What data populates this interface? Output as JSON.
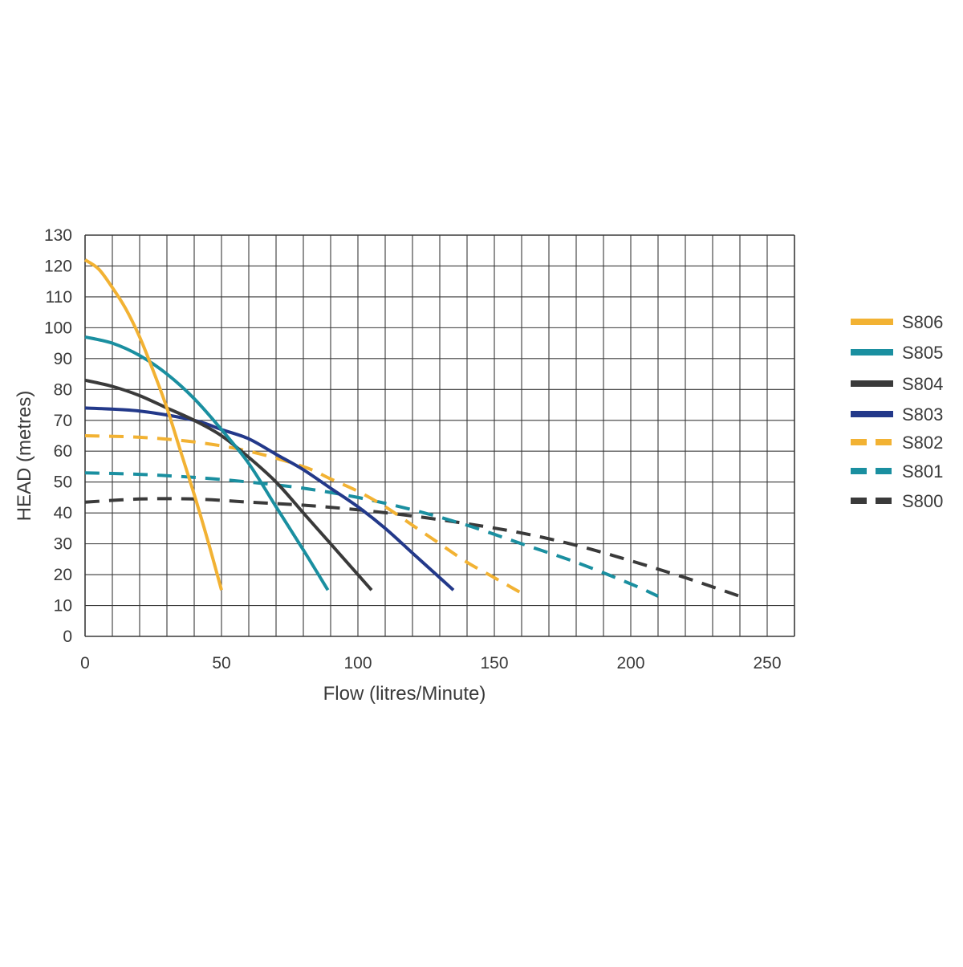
{
  "chart_data": {
    "type": "line",
    "title": "",
    "xlabel": "Flow (litres/Minute)",
    "ylabel": "HEAD (metres)",
    "xlim": [
      0,
      260
    ],
    "ylim": [
      0,
      130
    ],
    "x_ticks": [
      "0",
      "50",
      "100",
      "150",
      "200",
      "250"
    ],
    "y_ticks": [
      "0",
      "10",
      "20",
      "30",
      "40",
      "50",
      "60",
      "70",
      "80",
      "90",
      "100",
      "110",
      "120",
      "130"
    ],
    "grid": true,
    "legend_position": "right",
    "series": [
      {
        "name": "S806",
        "color": "#f2b233",
        "style": "solid",
        "x": [
          0,
          5,
          10,
          15,
          20,
          25,
          30,
          35,
          40,
          45,
          50
        ],
        "y": [
          122,
          119,
          113,
          106,
          97,
          86,
          74,
          60,
          46,
          31,
          15
        ]
      },
      {
        "name": "S805",
        "color": "#1a8fa0",
        "style": "solid",
        "x": [
          0,
          10,
          20,
          30,
          40,
          50,
          60,
          70,
          80,
          89
        ],
        "y": [
          97,
          95,
          91,
          85,
          77,
          67,
          56,
          42,
          28,
          15
        ]
      },
      {
        "name": "S804",
        "color": "#3a3a3a",
        "style": "solid",
        "x": [
          0,
          10,
          20,
          30,
          40,
          50,
          60,
          70,
          80,
          90,
          100,
          105
        ],
        "y": [
          83,
          81,
          78,
          74,
          70,
          65,
          58,
          50,
          40,
          30,
          20,
          15
        ]
      },
      {
        "name": "S803",
        "color": "#23398a",
        "style": "solid",
        "x": [
          0,
          20,
          40,
          50,
          60,
          70,
          80,
          90,
          100,
          110,
          120,
          130,
          135
        ],
        "y": [
          74,
          73,
          70,
          67,
          64,
          59,
          54,
          48,
          42,
          35,
          27,
          19,
          15
        ]
      },
      {
        "name": "S802",
        "color": "#f2b233",
        "style": "dashed",
        "x": [
          0,
          20,
          40,
          60,
          80,
          90,
          100,
          110,
          120,
          130,
          140,
          150,
          160
        ],
        "y": [
          65,
          64.5,
          63,
          60,
          55,
          51,
          47,
          42,
          36,
          30,
          24,
          19,
          14
        ]
      },
      {
        "name": "S801",
        "color": "#1a8fa0",
        "style": "dashed",
        "x": [
          0,
          20,
          40,
          60,
          80,
          100,
          120,
          140,
          160,
          180,
          200,
          210
        ],
        "y": [
          53,
          52.5,
          51.5,
          50,
          48,
          45,
          41,
          36,
          30,
          24,
          17,
          13
        ]
      },
      {
        "name": "S800",
        "color": "#3a3a3a",
        "style": "dashed",
        "x": [
          0,
          20,
          40,
          60,
          80,
          100,
          120,
          140,
          160,
          180,
          200,
          220,
          240
        ],
        "y": [
          43.5,
          44.5,
          44.5,
          43.5,
          42.5,
          41,
          39,
          36.5,
          33.5,
          29.5,
          24.5,
          19,
          13
        ]
      }
    ]
  }
}
